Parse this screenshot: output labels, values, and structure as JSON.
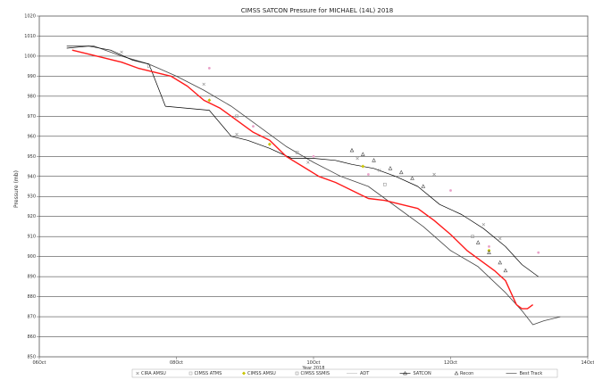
{
  "chart_data": {
    "type": "line",
    "title": "CIMSS SATCON Pressure for MICHAEL (14L) 2018",
    "ylabel": "Pressure (mb)",
    "xlabel": "",
    "ylim": [
      850,
      1020
    ],
    "yticks": [
      850,
      860,
      870,
      880,
      890,
      900,
      910,
      920,
      930,
      940,
      950,
      960,
      970,
      980,
      990,
      1000,
      1010,
      1020
    ],
    "xlim": [
      0,
      1
    ],
    "xticks": [
      {
        "x": 0.0,
        "label": "06Oct"
      },
      {
        "x": 0.25,
        "label": "08Oct"
      },
      {
        "x": 0.5,
        "label": "10Oct"
      },
      {
        "x": 0.75,
        "label": "12Oct"
      },
      {
        "x": 1.0,
        "label": "14Oct"
      }
    ],
    "x_sublabel": {
      "x": 0.5,
      "label": "Year 2018"
    },
    "grid": true,
    "legend_position": "bottom",
    "legend": [
      {
        "label": "CIRA AMSU",
        "marker": "x",
        "color": "#888888"
      },
      {
        "label": "CIMSS ATMS",
        "marker": "square",
        "color": "#aaaaaa"
      },
      {
        "label": "CIMSS AMSU",
        "marker": "diamond",
        "color": "#c8c400"
      },
      {
        "label": "CIMSS SSMIS",
        "marker": "square",
        "color": "#999999"
      },
      {
        "label": "ADT",
        "marker": "line",
        "color": "#bbbbbb"
      },
      {
        "label": "SATCON",
        "marker": "line-triangle",
        "color": "#000000"
      },
      {
        "label": "Recon",
        "marker": "triangle",
        "color": "#444444"
      },
      {
        "label": "Best Track",
        "marker": "line",
        "color": "#333333"
      }
    ],
    "series": [
      {
        "name": "Best Track",
        "color": "#444444",
        "width": 0.8,
        "x": [
          0.05,
          0.1,
          0.15,
          0.2,
          0.25,
          0.3,
          0.35,
          0.4,
          0.45,
          0.5,
          0.55,
          0.6,
          0.65,
          0.7,
          0.75,
          0.8,
          0.85,
          0.88,
          0.9,
          0.92,
          0.95
        ],
        "y": [
          1005,
          1005,
          1000,
          996,
          990,
          983,
          975,
          965,
          955,
          947,
          940,
          935,
          925,
          915,
          903,
          895,
          882,
          873,
          866,
          868,
          870
        ]
      },
      {
        "name": "SATCON",
        "color": "#000000",
        "width": 0.7,
        "x": [
          0.05,
          0.09,
          0.13,
          0.17,
          0.2,
          0.23,
          0.27,
          0.31,
          0.35,
          0.38,
          0.42,
          0.46,
          0.5,
          0.54,
          0.57,
          0.61,
          0.65,
          0.69,
          0.73,
          0.77,
          0.81,
          0.85,
          0.88,
          0.91
        ],
        "y": [
          1004,
          1005,
          1003,
          998,
          996,
          975,
          974,
          973,
          960,
          958,
          954,
          949,
          949,
          948,
          946,
          944,
          940,
          935,
          926,
          921,
          914,
          905,
          896,
          890
        ]
      },
      {
        "name": "SATCON (smoothed)",
        "color": "#ff1a1a",
        "width": 1.4,
        "x": [
          0.06,
          0.09,
          0.12,
          0.15,
          0.18,
          0.21,
          0.24,
          0.27,
          0.3,
          0.33,
          0.36,
          0.39,
          0.42,
          0.45,
          0.48,
          0.51,
          0.54,
          0.57,
          0.6,
          0.63,
          0.66,
          0.69,
          0.72,
          0.75,
          0.78,
          0.81,
          0.83,
          0.85,
          0.87,
          0.88,
          0.89,
          0.9
        ],
        "y": [
          1003,
          1001,
          999,
          997,
          994,
          992,
          990,
          985,
          978,
          974,
          968,
          962,
          958,
          950,
          945,
          940,
          937,
          933,
          929,
          928,
          926,
          924,
          918,
          911,
          903,
          897,
          893,
          888,
          876,
          874,
          874,
          876
        ]
      }
    ],
    "scatter": [
      {
        "name": "CIRA AMSU",
        "marker": "x",
        "color": "#888888",
        "x": [
          0.15,
          0.3,
          0.36,
          0.49,
          0.58,
          0.62,
          0.72,
          0.81,
          0.84
        ],
        "y": [
          1002,
          986,
          961,
          947,
          949,
          943,
          941,
          916,
          909
        ]
      },
      {
        "name": "CIMSS AMSU",
        "marker": "diamond",
        "color": "#c8c400",
        "x": [
          0.31,
          0.42,
          0.59,
          0.82
        ],
        "y": [
          978,
          956,
          945,
          903
        ]
      },
      {
        "name": "CIMSS SSMIS",
        "marker": "square",
        "color": "#999999",
        "x": [
          0.2,
          0.36,
          0.47,
          0.63,
          0.79
        ],
        "y": [
          995,
          970,
          952,
          936,
          910
        ]
      },
      {
        "name": "ADT",
        "marker": "dot",
        "color": "#e9a0c8",
        "x": [
          0.31,
          0.39,
          0.5,
          0.6,
          0.75,
          0.82,
          0.91
        ],
        "y": [
          994,
          965,
          950,
          941,
          933,
          905,
          902
        ]
      },
      {
        "name": "Recon",
        "marker": "triangle",
        "color": "#444444",
        "x": [
          0.57,
          0.59,
          0.61,
          0.64,
          0.66,
          0.68,
          0.7,
          0.8,
          0.82,
          0.84,
          0.85
        ],
        "y": [
          953,
          951,
          948,
          944,
          942,
          939,
          935,
          907,
          902,
          897,
          893
        ]
      }
    ]
  }
}
